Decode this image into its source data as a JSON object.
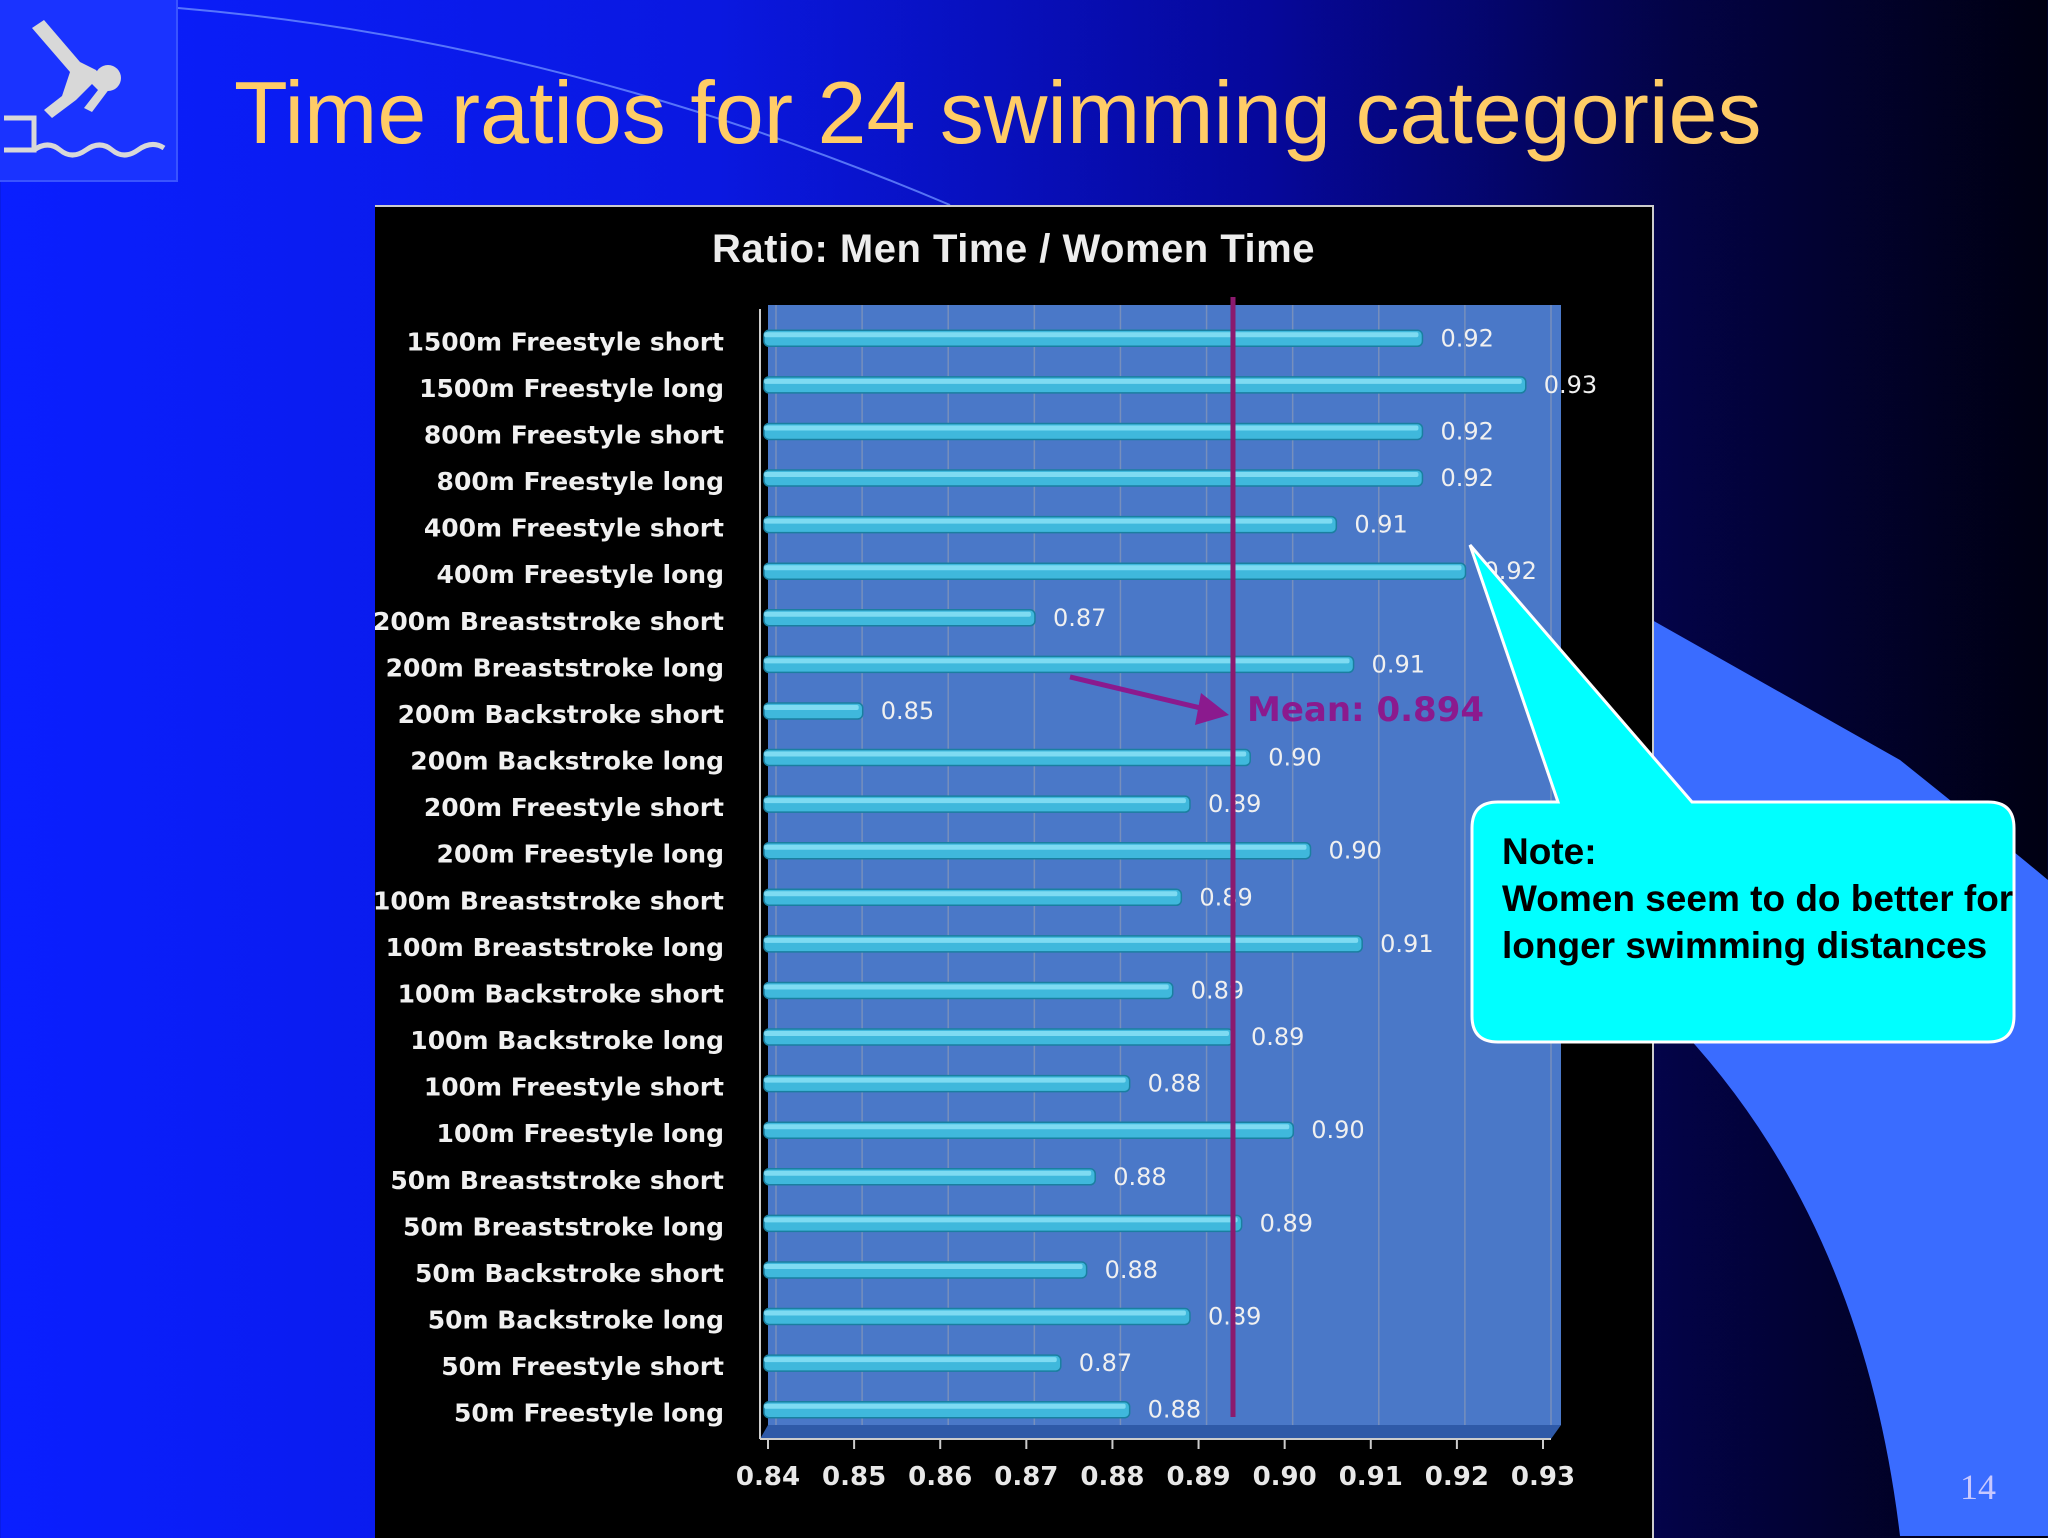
{
  "slide": {
    "title": "Time ratios for 24 swimming categories",
    "page_number": "14",
    "logo_icon": "swimmer-diving-icon",
    "colors": {
      "title": "#ffcc66",
      "plot_background": "#4a78c8",
      "bar": "#3fb8dc",
      "mean_line": "#8b1a6e",
      "callout": "#00ffff"
    }
  },
  "chart_data": {
    "type": "bar",
    "orientation": "horizontal",
    "title": "Ratio:   Men Time / Women Time",
    "xlabel": "",
    "ylabel": "",
    "xlim": [
      0.84,
      0.93
    ],
    "x_ticks": [
      "0.84",
      "0.85",
      "0.86",
      "0.87",
      "0.88",
      "0.89",
      "0.90",
      "0.91",
      "0.92",
      "0.93"
    ],
    "grid": true,
    "categories": [
      "1500m Freestyle  short",
      "1500m Freestyle  long",
      "800m Freestyle  short",
      "800m Freestyle  long",
      "400m Freestyle  short",
      "400m Freestyle  long",
      "200m Breaststroke  short",
      "200m Breaststroke  long",
      "200m Backstroke  short",
      "200m Backstroke  long",
      "200m Freestyle  short",
      "200m Freestyle  long",
      "100m Breaststroke  short",
      "100m Breaststroke  long",
      "100m Backstroke  short",
      "100m Backstroke  long",
      "100m Freestyle  short",
      "100m Freestyle  long",
      "50m Breaststroke  short",
      "50m Breaststroke  long",
      "50m Backstroke  short",
      "50m Backstroke  long",
      "50m Freestyle  short",
      "50m Freestyle  long"
    ],
    "values": [
      0.916,
      0.928,
      0.916,
      0.916,
      0.906,
      0.921,
      0.871,
      0.908,
      0.851,
      0.896,
      0.889,
      0.903,
      0.888,
      0.909,
      0.887,
      0.894,
      0.882,
      0.901,
      0.878,
      0.895,
      0.877,
      0.889,
      0.874,
      0.882
    ],
    "data_labels": [
      "0.92",
      "0.93",
      "0.92",
      "0.92",
      "0.91",
      "0.92",
      "0.87",
      "0.91",
      "0.85",
      "0.90",
      "0.89",
      "0.90",
      "0.89",
      "0.91",
      "0.89",
      "0.89",
      "0.88",
      "0.90",
      "0.88",
      "0.89",
      "0.88",
      "0.89",
      "0.87",
      "0.88"
    ],
    "mean": {
      "value": 0.894,
      "label": "Mean: 0.894"
    }
  },
  "callout": {
    "heading": "Note:",
    "text": "Women seem to do better for longer  swimming distances"
  }
}
